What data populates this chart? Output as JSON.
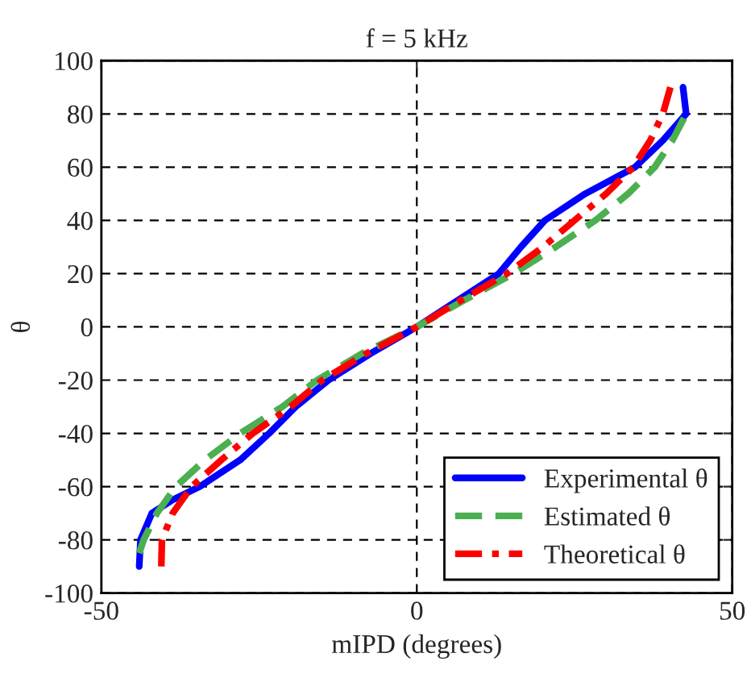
{
  "chart_data": {
    "type": "line",
    "title": "f = 5 kHz",
    "xlabel": "mIPD (degrees)",
    "ylabel": "θ",
    "xlim": [
      -50,
      50
    ],
    "xticks": [
      -50,
      0,
      50
    ],
    "ylim": [
      -100,
      100
    ],
    "yticks": [
      -100,
      -80,
      -60,
      -40,
      -20,
      0,
      20,
      40,
      60,
      80,
      100
    ],
    "grid": true,
    "legend": "bottom right",
    "marker": "none",
    "series": [
      {
        "name": "Experimental θ",
        "color": "#0000ff",
        "line_style": "solid",
        "x": [
          -44,
          -43.8,
          -42,
          -38.7,
          -34.4,
          -28,
          -23.4,
          -19.2,
          -14,
          -7.3,
          0,
          6.5,
          13,
          16.5,
          20.3,
          26.7,
          34.6,
          39,
          42.7,
          42.2
        ],
        "values": [
          -90,
          -80,
          -70,
          -65,
          -60,
          -50,
          -40,
          -30,
          -20,
          -10,
          0,
          10,
          20,
          30,
          40,
          50,
          60,
          70,
          80,
          90
        ]
      },
      {
        "name": "Estimated θ",
        "color": "#4caf50",
        "line_style": "dashed",
        "x": [
          -44,
          -43.3,
          -41.2,
          -38.2,
          -33.6,
          -28,
          -21.3,
          -15.8,
          -8.7,
          0,
          7.5,
          15.3,
          22,
          28.3,
          33.5,
          37.7,
          40.5,
          42.7
        ],
        "values": [
          -85,
          -80,
          -70,
          -60,
          -50,
          -40,
          -30,
          -20,
          -10,
          0,
          10,
          20,
          30,
          40,
          50,
          60,
          70,
          80
        ]
      },
      {
        "name": "Theoretical θ",
        "color": "#ff0000",
        "line_style": "dashdot",
        "x": [
          -40.5,
          -40.4,
          -38.7,
          -35.7,
          -31,
          -26,
          -20,
          -15,
          -8,
          0,
          7,
          14.3,
          20,
          25,
          30,
          34.3,
          37,
          39,
          40.2
        ],
        "values": [
          -90,
          -80,
          -70,
          -60,
          -50,
          -40,
          -30,
          -20,
          -10,
          0,
          10,
          20,
          30,
          40,
          50,
          60,
          70,
          80,
          90
        ]
      }
    ]
  }
}
